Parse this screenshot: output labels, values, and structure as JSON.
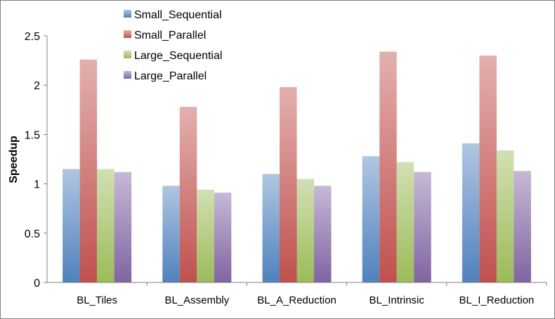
{
  "chart_data": {
    "type": "bar",
    "categories": [
      "BL_Tiles",
      "BL_Assembly",
      "BL_A_Reduction",
      "BL_Intrinsic",
      "BL_I_Reduction"
    ],
    "series": [
      {
        "name": "Small_Sequential",
        "color": "#4f81bd",
        "values": [
          1.15,
          0.98,
          1.1,
          1.28,
          1.41
        ]
      },
      {
        "name": "Small_Parallel",
        "color": "#c0504d",
        "values": [
          2.26,
          1.78,
          1.98,
          2.34,
          2.3
        ]
      },
      {
        "name": "Large_Sequential",
        "color": "#9bbb59",
        "values": [
          1.15,
          0.94,
          1.05,
          1.22,
          1.34
        ]
      },
      {
        "name": "Large_Parallel",
        "color": "#8064a2",
        "values": [
          1.12,
          0.91,
          0.98,
          1.12,
          1.13
        ]
      }
    ],
    "xlabel": "",
    "ylabel": "Speedup",
    "ylim": [
      0,
      2.5
    ],
    "yticks": [
      "0",
      "0.5",
      "1",
      "1.5",
      "2",
      "2.5"
    ],
    "grid": false,
    "legend_position": "top-center"
  }
}
